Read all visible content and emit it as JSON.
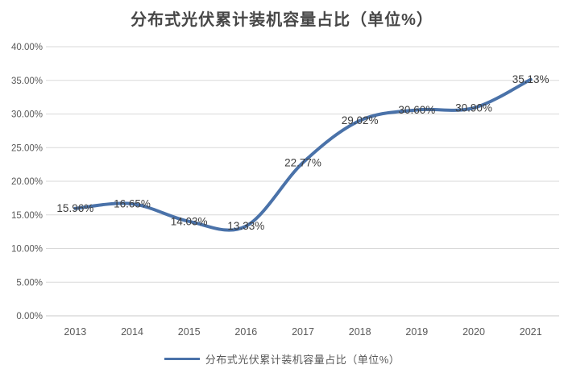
{
  "title": "分布式光伏累计装机容量占比（单位%）",
  "legend": {
    "label": "分布式光伏累计装机容量占比（单位%）"
  },
  "colors": {
    "line": "#4a72a9",
    "grid": "#d9d9d9",
    "axis_line": "#c9c9c9",
    "axis_text": "#595959",
    "data_label_text": "#3d3d3d",
    "title_text": "#474747"
  },
  "chart_data": {
    "type": "line",
    "title": "分布式光伏累计装机容量占比（单位%）",
    "categories": [
      "2013",
      "2014",
      "2015",
      "2016",
      "2017",
      "2018",
      "2019",
      "2020",
      "2021"
    ],
    "series": [
      {
        "name": "分布式光伏累计装机容量占比（单位%）",
        "values": [
          15.96,
          16.65,
          14.03,
          13.33,
          22.77,
          29.02,
          30.6,
          30.9,
          35.13
        ]
      }
    ],
    "data_labels": [
      "15.96%",
      "16.65%",
      "14.03%",
      "13.33%",
      "22.77%",
      "29.02%",
      "30.60%",
      "30.90%",
      "35.13%"
    ],
    "xlabel": "",
    "ylabel": "",
    "ylim": [
      0,
      40
    ],
    "ytick_step": 5,
    "ytick_labels": [
      "0.00%",
      "5.00%",
      "10.00%",
      "15.00%",
      "20.00%",
      "25.00%",
      "30.00%",
      "35.00%",
      "40.00%"
    ],
    "grid": true,
    "smooth": true,
    "legend_position": "bottom"
  }
}
